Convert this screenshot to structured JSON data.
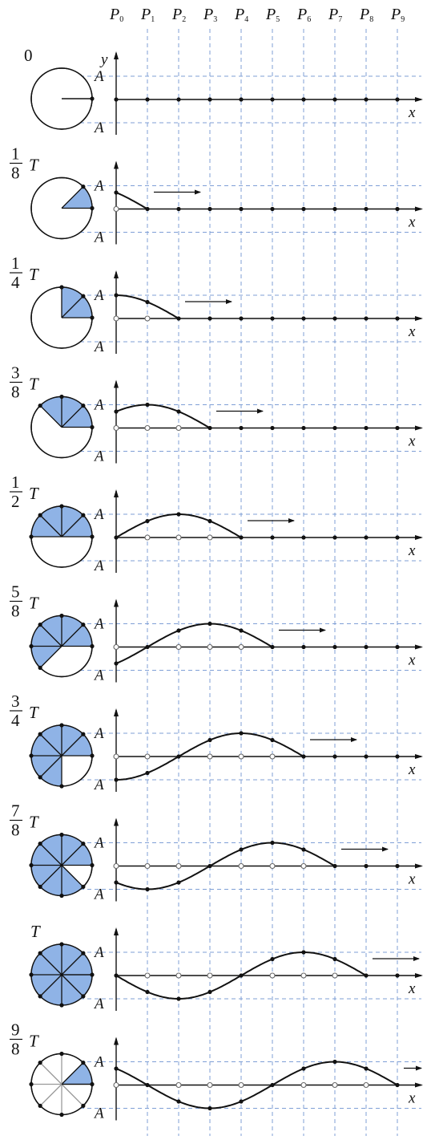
{
  "figure": {
    "point_label_letter": "P",
    "point_subscripts": [
      "0",
      "1",
      "2",
      "3",
      "4",
      "5",
      "6",
      "7",
      "8",
      "9"
    ],
    "x_axis_label": "x",
    "y_axis_label": "y",
    "amplitude_label": "A",
    "period_symbol": "T",
    "fill_color": "#8fb3e6",
    "grid_color": "#7f9fd6",
    "axis_color": "#111111",
    "panels": [
      {
        "numerator": "",
        "denominator": "",
        "plain": "0",
        "show_T": false,
        "sectors": 0,
        "first_sector": 0,
        "has_y_label": true
      },
      {
        "numerator": "1",
        "denominator": "8",
        "plain": "",
        "show_T": true,
        "sectors": 1,
        "first_sector": 0,
        "has_y_label": false
      },
      {
        "numerator": "1",
        "denominator": "4",
        "plain": "",
        "show_T": true,
        "sectors": 2,
        "first_sector": 0,
        "has_y_label": false
      },
      {
        "numerator": "3",
        "denominator": "8",
        "plain": "",
        "show_T": true,
        "sectors": 3,
        "first_sector": 0,
        "has_y_label": false
      },
      {
        "numerator": "1",
        "denominator": "2",
        "plain": "",
        "show_T": true,
        "sectors": 4,
        "first_sector": 0,
        "has_y_label": false
      },
      {
        "numerator": "5",
        "denominator": "8",
        "plain": "",
        "show_T": true,
        "sectors": 5,
        "first_sector": 0,
        "has_y_label": false
      },
      {
        "numerator": "3",
        "denominator": "4",
        "plain": "",
        "show_T": true,
        "sectors": 6,
        "first_sector": 0,
        "has_y_label": false
      },
      {
        "numerator": "7",
        "denominator": "8",
        "plain": "",
        "show_T": true,
        "sectors": 7,
        "first_sector": 0,
        "has_y_label": false
      },
      {
        "numerator": "",
        "denominator": "",
        "plain": "",
        "show_T": true,
        "sectors": 8,
        "first_sector": 0,
        "has_y_label": false
      },
      {
        "numerator": "9",
        "denominator": "8",
        "plain": "",
        "show_T": true,
        "sectors": 1,
        "first_sector": 0,
        "has_y_label": false
      }
    ]
  }
}
